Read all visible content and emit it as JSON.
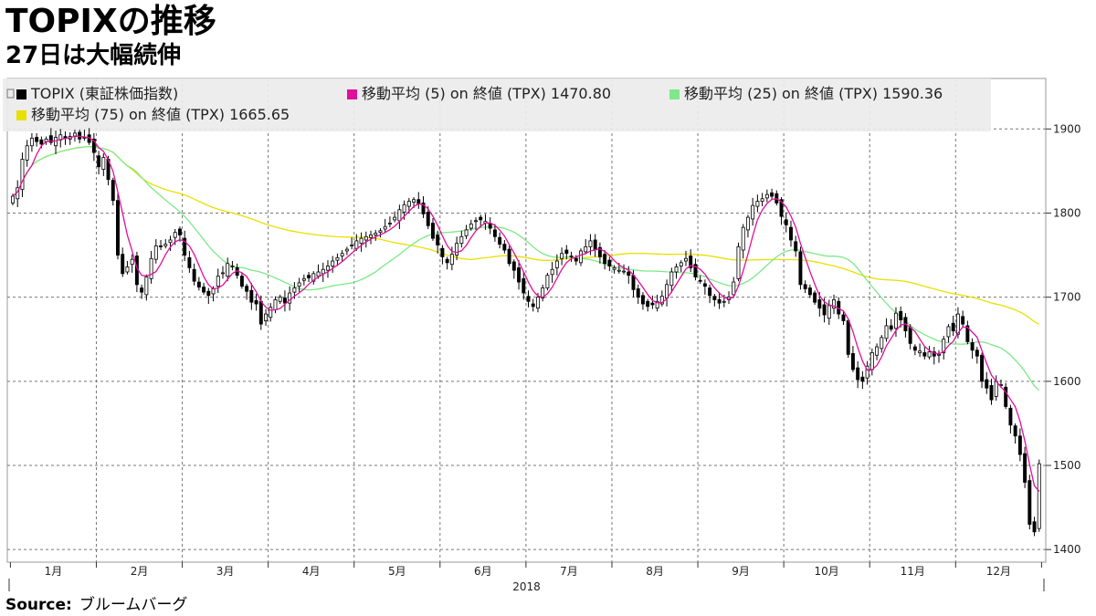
{
  "header": {
    "title": "TOPIXの推移",
    "subtitle": "27日は大幅続伸"
  },
  "source": {
    "label": "Source:",
    "text": "ブルームバーグ"
  },
  "chart_data": {
    "type": "candlestick",
    "legend": [
      {
        "label": "TOPIX (東証株価指数)",
        "color": "#000000"
      },
      {
        "label": "移動平均 (5)  on 終値 (TPX) 1470.80",
        "color": "#e0109a"
      },
      {
        "label": "移動平均 (25)  on 終値 (TPX) 1590.36",
        "color": "#7ee88a"
      },
      {
        "label": "移動平均 (75)  on 終値 (TPX) 1665.65",
        "color": "#e8e000"
      }
    ],
    "y_axis": {
      "position": "right",
      "ticks": [
        1400,
        1500,
        1600,
        1700,
        1800,
        1900
      ],
      "range": [
        1385,
        1960
      ]
    },
    "x_axis": {
      "months": [
        "1月",
        "2月",
        "3月",
        "4月",
        "5月",
        "6月",
        "7月",
        "8月",
        "9月",
        "10月",
        "11月",
        "12月"
      ],
      "year": "2018"
    },
    "grid": true,
    "legend_position": "top-left",
    "close_series": [
      1820,
      1830,
      1864,
      1880,
      1889,
      1885,
      1882,
      1888,
      1884,
      1890,
      1893,
      1889,
      1891,
      1895,
      1888,
      1890,
      1884,
      1872,
      1855,
      1866,
      1840,
      1815,
      1750,
      1728,
      1736,
      1745,
      1715,
      1706,
      1724,
      1746,
      1761,
      1760,
      1763,
      1768,
      1777,
      1774,
      1750,
      1735,
      1719,
      1712,
      1706,
      1702,
      1710,
      1725,
      1729,
      1740,
      1737,
      1726,
      1713,
      1707,
      1694,
      1692,
      1668,
      1680,
      1688,
      1697,
      1700,
      1693,
      1705,
      1711,
      1717,
      1722,
      1723,
      1728,
      1730,
      1733,
      1737,
      1743,
      1747,
      1752,
      1757,
      1762,
      1767,
      1770,
      1772,
      1774,
      1776,
      1779,
      1784,
      1788,
      1795,
      1804,
      1810,
      1814,
      1816,
      1811,
      1799,
      1785,
      1770,
      1762,
      1748,
      1741,
      1751,
      1764,
      1772,
      1780,
      1787,
      1791,
      1792,
      1790,
      1782,
      1772,
      1763,
      1756,
      1740,
      1732,
      1718,
      1705,
      1695,
      1689,
      1700,
      1711,
      1726,
      1733,
      1743,
      1752,
      1752,
      1749,
      1743,
      1755,
      1760,
      1767,
      1757,
      1748,
      1740,
      1737,
      1735,
      1732,
      1731,
      1726,
      1709,
      1700,
      1692,
      1689,
      1691,
      1695,
      1701,
      1715,
      1730,
      1736,
      1741,
      1746,
      1735,
      1724,
      1719,
      1713,
      1702,
      1697,
      1693,
      1695,
      1700,
      1718,
      1760,
      1783,
      1795,
      1809,
      1814,
      1817,
      1822,
      1820,
      1812,
      1796,
      1786,
      1768,
      1755,
      1715,
      1710,
      1703,
      1694,
      1687,
      1679,
      1690,
      1697,
      1680,
      1672,
      1632,
      1614,
      1602,
      1600,
      1618,
      1634,
      1641,
      1652,
      1666,
      1662,
      1681,
      1673,
      1660,
      1645,
      1637,
      1636,
      1630,
      1635,
      1630,
      1632,
      1650,
      1665,
      1660,
      1680,
      1668,
      1647,
      1637,
      1630,
      1600,
      1592,
      1578,
      1600,
      1596,
      1570,
      1548,
      1535,
      1513,
      1480,
      1430,
      1421,
      1502
    ]
  }
}
